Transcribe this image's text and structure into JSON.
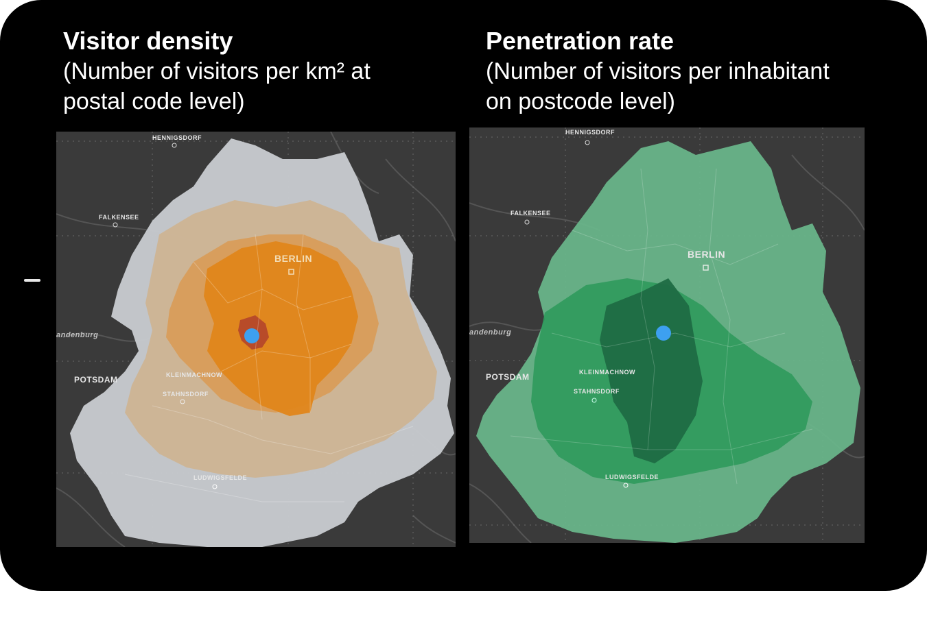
{
  "panels": {
    "left": {
      "title": "Visitor density",
      "subtitle": "(Number of visitors per km² at\npostal code level)",
      "place_labels": {
        "north": "HENNIGSDORF",
        "west": "FALKENSEE",
        "center": "BERLIN",
        "region": "andenburg",
        "southwest": "POTSDAM",
        "south_a": "KLEINMACHNOW",
        "south_b": "STAHNSDORF",
        "south_c": "LUDWIGSFELDE"
      }
    },
    "right": {
      "title": "Penetration rate",
      "subtitle": "(Number of visitors per inhabitant\non postcode level)",
      "place_labels": {
        "north": "HENNIGSDORF",
        "west": "FALKENSEE",
        "center": "BERLIN",
        "region": "andenburg",
        "southwest": "POTSDAM",
        "south_a": "KLEINMACHNOW",
        "south_b": "STAHNSDORF",
        "south_c": "LUDWIGSFELDE"
      }
    }
  },
  "colors": {
    "frame": "#000000",
    "map_background": "#3a3a3a",
    "location_marker": "#3da0f0",
    "density_high": "#e0861a",
    "density_mid": "#d8a56a",
    "density_low": "#cbb79a",
    "density_none": "#c9ccd1",
    "penetration_high": "#1f6b43",
    "penetration_mid": "#2f9a5c",
    "penetration_low": "#6ab88c"
  }
}
